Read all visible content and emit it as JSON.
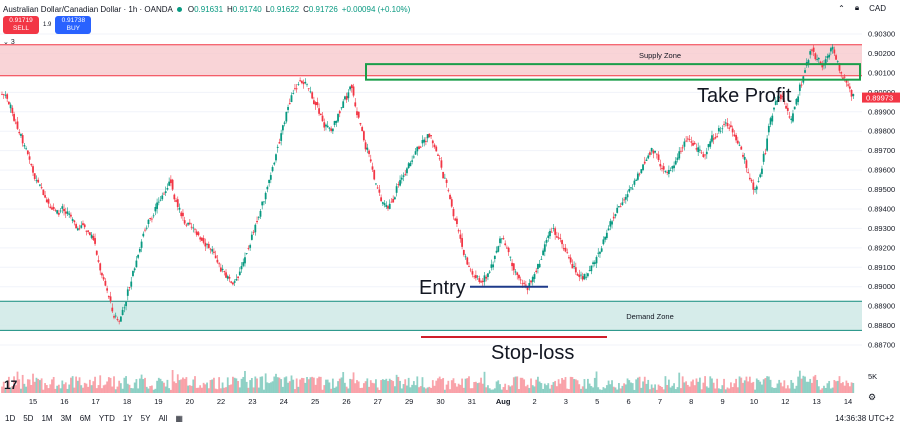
{
  "header": {
    "symbol": "Australian Dollar/Canadian Dollar · 1h · OANDA",
    "ohlc": [
      {
        "k": "O",
        "v": "0.91631"
      },
      {
        "k": "H",
        "v": "0.91740"
      },
      {
        "k": "L",
        "v": "0.91622"
      },
      {
        "k": "C",
        "v": "0.91726"
      },
      {
        "k": "",
        "v": "+0.00094 (+0.10%)"
      }
    ],
    "currency": "CAD",
    "sell_price": "0.91719",
    "sell_label": "SELL",
    "buy_price": "0.91738",
    "buy_label": "BUY",
    "spread": "1.9",
    "collapse_count": "3"
  },
  "price_axis": {
    "ticks": [
      "0.90300",
      "0.90200",
      "0.90100",
      "0.90000",
      "0.89900",
      "0.89800",
      "0.89700",
      "0.89600",
      "0.89500",
      "0.89400",
      "0.89300",
      "0.89200",
      "0.89100",
      "0.89000",
      "0.88900",
      "0.88800",
      "0.88700"
    ],
    "current_price": "0.89973",
    "volume_label": "5K"
  },
  "time_axis": {
    "ticks": [
      "15",
      "16",
      "17",
      "18",
      "19",
      "20",
      "22",
      "23",
      "24",
      "25",
      "26",
      "27",
      "29",
      "30",
      "31",
      "Aug",
      "2",
      "3",
      "5",
      "6",
      "7",
      "8",
      "9",
      "10",
      "12",
      "13",
      "14"
    ]
  },
  "zones": {
    "supply_label": "Supply Zone",
    "demand_label": "Demand Zone"
  },
  "annotations": {
    "take_profit": "Take Profit",
    "entry": "Entry",
    "stop_loss": "Stop-loss"
  },
  "bottom": {
    "ranges": [
      "1D",
      "5D",
      "1M",
      "3M",
      "6M",
      "YTD",
      "1Y",
      "5Y",
      "All"
    ],
    "clock": "14:36:38 UTC+2"
  },
  "colors": {
    "up": "#089981",
    "down": "#f23645",
    "supply_fill": "#f8c9cd",
    "supply_line": "#f23645",
    "demand_fill": "#cfe9e6",
    "demand_line": "#138c7e",
    "tp_box": "#1a9e4a",
    "entry_line": "#1e3a8a",
    "sl_line": "#d01f2a"
  },
  "chart_data": {
    "type": "candlestick",
    "ylim": [
      0.8865,
      0.9031
    ],
    "price_path": [
      [
        0.8999,
        0.8992,
        0.8985,
        0.8978,
        0.897,
        0.8962,
        0.8955,
        0.895,
        0.8945,
        0.8941,
        0.8938,
        0.894,
        0.8937,
        0.8934,
        0.893,
        0.8932,
        0.8928,
        0.8925,
        0.8912,
        0.8903,
        0.8895,
        0.8885,
        0.8882,
        0.889,
        0.89,
        0.891,
        0.892,
        0.893,
        0.8935,
        0.894,
        0.8945,
        0.895,
        0.8955,
        0.8945,
        0.8938,
        0.8932,
        0.893,
        0.8928,
        0.8925,
        0.8922,
        0.8918,
        0.8912,
        0.8908,
        0.8905,
        0.8902,
        0.8906,
        0.8912,
        0.892,
        0.8928,
        0.8936,
        0.8945,
        0.8955,
        0.8965,
        0.8975,
        0.8985,
        0.8995,
        0.9002,
        0.9006,
        0.9004,
        0.9,
        0.8995,
        0.8988,
        0.8982,
        0.898,
        0.8985,
        0.8992,
        0.8997,
        0.9003,
        0.899,
        0.898,
        0.897,
        0.896,
        0.895,
        0.8942,
        0.894,
        0.8945,
        0.8952,
        0.8958,
        0.8962,
        0.8968,
        0.8972,
        0.8975,
        0.8978,
        0.8972,
        0.8965,
        0.8955,
        0.8945,
        0.8935,
        0.8925,
        0.8915,
        0.8908,
        0.8905,
        0.8903,
        0.8905,
        0.891,
        0.8918,
        0.8925,
        0.892,
        0.8912,
        0.8906,
        0.8902,
        0.89,
        0.8904,
        0.891,
        0.8918,
        0.8926,
        0.893,
        0.8925,
        0.892,
        0.8915,
        0.891,
        0.8906,
        0.8905,
        0.8908,
        0.8912,
        0.8918,
        0.8925,
        0.8932,
        0.8938,
        0.8942,
        0.8946,
        0.895,
        0.8955,
        0.896,
        0.8966,
        0.897,
        0.8968,
        0.8962,
        0.8958,
        0.8961,
        0.8966,
        0.8972,
        0.8976,
        0.8974,
        0.897,
        0.8968,
        0.8972,
        0.8977,
        0.898,
        0.8984,
        0.8983,
        0.8978,
        0.8972,
        0.8965,
        0.8955,
        0.895,
        0.8958,
        0.897,
        0.8985,
        0.8995,
        0.8998,
        0.8992,
        0.8985,
        0.8995,
        0.9005,
        0.9015,
        0.9023,
        0.9017,
        0.9014,
        0.9018,
        0.9022,
        0.9015,
        0.9008,
        0.9003,
        0.8998
      ]
    ],
    "notes": ""
  }
}
